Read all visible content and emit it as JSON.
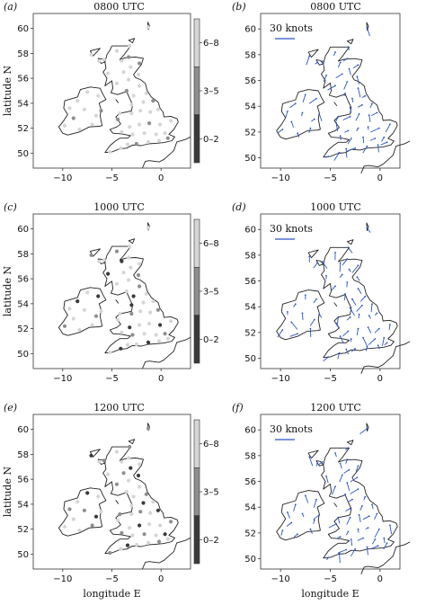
{
  "figure": {
    "rows": [
      {
        "time": "0800 UTC",
        "left_label": "(a)",
        "right_label": "(b)"
      },
      {
        "time": "1000 UTC",
        "left_label": "(c)",
        "right_label": "(d)"
      },
      {
        "time": "1200 UTC",
        "left_label": "(e)",
        "right_label": "(f)"
      }
    ],
    "y_axis_label": "latitude N",
    "x_axis_label": "longitude E",
    "legend_levels": [
      "6–8",
      "3–5",
      "0–2"
    ],
    "legend_colors": [
      "#d6d6d6",
      "#8e8e8e",
      "#3a3a3a"
    ],
    "arrow_scale_label": "30 knots",
    "arrow_color": "#2a55c8",
    "x_ticks": [
      "−10",
      "−5",
      "0"
    ],
    "y_ticks_left": [
      "60",
      "58",
      "56",
      "54",
      "52",
      "50"
    ],
    "y_ticks_right": [
      "60",
      "58",
      "56",
      "54",
      "52",
      "50"
    ]
  }
}
